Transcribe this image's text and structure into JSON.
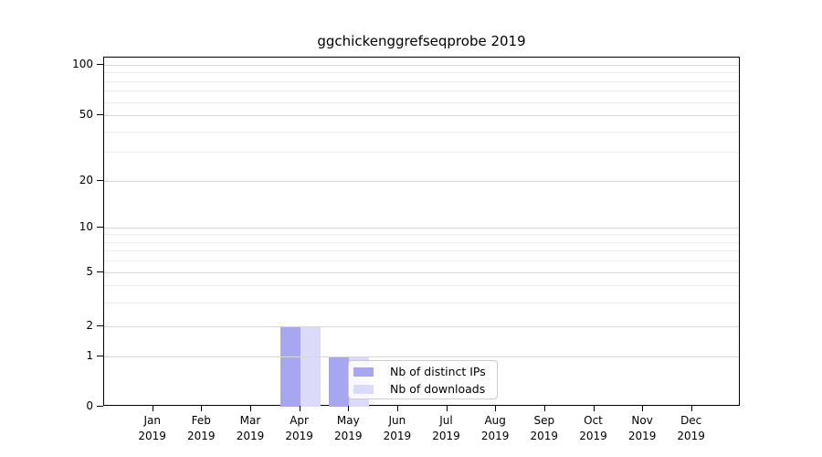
{
  "title": "ggchickenggrefseqprobe 2019",
  "chart_data": {
    "type": "bar",
    "title": "ggchickenggrefseqprobe 2019",
    "categories": [
      "Jan 2019",
      "Feb 2019",
      "Mar 2019",
      "Apr 2019",
      "May 2019",
      "Jun 2019",
      "Jul 2019",
      "Aug 2019",
      "Sep 2019",
      "Oct 2019",
      "Nov 2019",
      "Dec 2019"
    ],
    "series": [
      {
        "name": "Nb of distinct IPs",
        "color": "#a7a7f1",
        "values": [
          0,
          0,
          0,
          2,
          1,
          0,
          0,
          0,
          0,
          0,
          0,
          0
        ]
      },
      {
        "name": "Nb of downloads",
        "color": "#dbdbf9",
        "values": [
          0,
          0,
          0,
          2,
          1,
          0,
          0,
          0,
          0,
          0,
          0,
          0
        ]
      }
    ],
    "xlabel": "",
    "ylabel": "",
    "y_scale": "symlog",
    "y_tick_labels": [
      "0",
      "1",
      "2",
      "5",
      "10",
      "20",
      "50",
      "100"
    ],
    "y_ticks": [
      0,
      1,
      2,
      5,
      10,
      20,
      50,
      100
    ],
    "ylim": [
      0,
      120
    ],
    "grid": "horizontal-major-and-minor",
    "legend_position": "inside-lower-center",
    "legend_entries": [
      "Nb of distinct IPs",
      "Nb of downloads"
    ]
  },
  "colors": {
    "bar_distinct_ips": "#a7a7f1",
    "bar_downloads": "#dbdbf9",
    "grid_major": "#d9d9d9",
    "grid_minor": "#ececec",
    "axis": "#000000",
    "legend_border": "#cccccc",
    "background": "#ffffff"
  }
}
